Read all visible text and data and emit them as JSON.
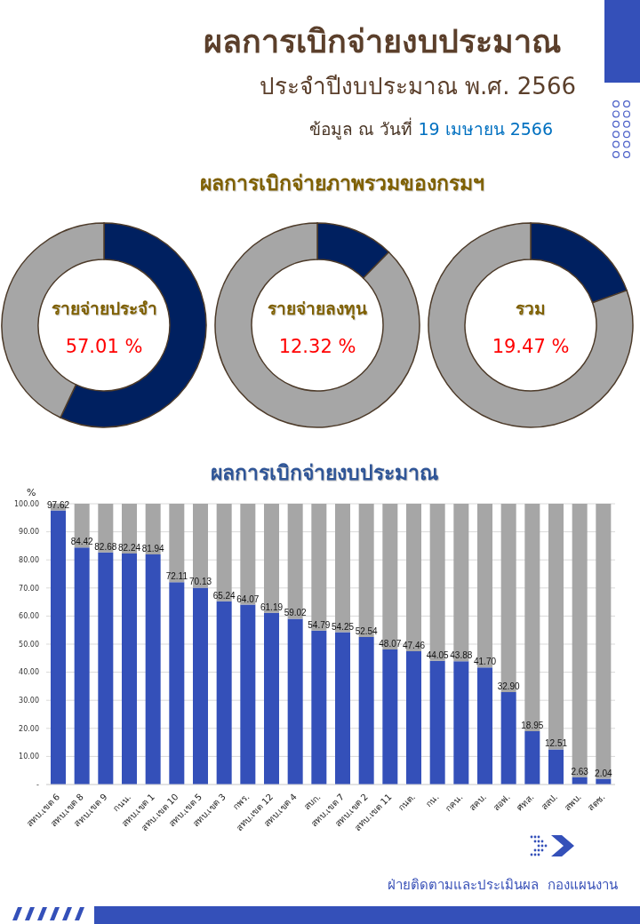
{
  "chart_data": [
    {
      "type": "other",
      "title": "ผลการเบิกจ่ายงบประมาณ",
      "subtitle": "ประจำปีงบประมาณ พ.ศ. 2566",
      "annotations": [
        "ข้อมูล ณ วันที่",
        "19 เมษายน 2566",
        "ผลการเบิกจ่ายภาพรวมของกรมฯ"
      ]
    },
    {
      "type": "donut",
      "title": "รายจ่ายประจำ",
      "categories": [
        null,
        null
      ],
      "values": [
        57.01,
        42.99
      ],
      "colors": [
        "#002060",
        "#a6a6a6"
      ],
      "annotations": [
        "57.01 %"
      ]
    },
    {
      "type": "donut",
      "title": "รายจ่ายลงทุน",
      "categories": [
        null,
        null
      ],
      "values": [
        12.32,
        87.68
      ],
      "colors": [
        "#002060",
        "#a6a6a6"
      ],
      "annotations": [
        "12.32 %"
      ]
    },
    {
      "type": "donut",
      "title": "รวม",
      "categories": [
        null,
        null
      ],
      "values": [
        19.47,
        80.53
      ],
      "colors": [
        "#002060",
        "#a6a6a6"
      ],
      "annotations": [
        "19.47 %"
      ]
    },
    {
      "type": "bar",
      "title": "ผลการเบิกจ่ายงบประมาณ",
      "ylabel": "%",
      "stacked": true,
      "grid": "y",
      "categories": [
        "สทบ.เขต 6",
        "สทบ.เขต 8",
        "สทบ.เขต 9",
        "กนน.",
        "สทบ.เขต 1",
        "สทบ.เขต 10",
        "สทบ.เขต 5",
        "สทบ.เขต 3",
        "กพร.",
        "สทบ.เขต 12",
        "สทบ.เขต 4",
        "สบก.",
        "สทบ.เขต 7",
        "สทบ.เขต 2",
        "สทบ.เขต 11",
        "กนต.",
        "กน.",
        "กคน.",
        "สคบ.",
        "สอฟ.",
        "ศทส.",
        "สสป.",
        "สพบ.",
        "สตช."
      ],
      "series": [
        {
          "color": "#3450b9",
          "values": [
            97.62,
            84.42,
            82.68,
            82.24,
            81.94,
            72.11,
            70.13,
            65.24,
            64.07,
            61.19,
            59.02,
            54.79,
            54.25,
            52.54,
            48.07,
            47.46,
            44.05,
            43.88,
            41.7,
            32.9,
            18.95,
            12.51,
            2.63,
            2.04
          ],
          "value_labels": [
            "97.62",
            "84.42",
            "82.68",
            "82.24",
            "81.94",
            "72.11",
            "70.13",
            "65.24",
            "64.07",
            "61.19",
            "59.02",
            "54.79",
            "54.25",
            "52.54",
            "48.07",
            "47.46",
            "44.05",
            "43.88",
            "41.70",
            "32.90",
            "18.95",
            "12.51",
            "2.63",
            "2.04"
          ]
        },
        {
          "color": "#a6a6a6",
          "values": [
            2.38,
            15.58,
            17.32,
            17.76,
            18.06,
            27.89,
            29.87,
            34.76,
            35.93,
            38.81,
            40.98,
            45.21,
            45.75,
            47.46,
            51.93,
            52.54,
            55.95,
            56.12,
            58.3,
            67.1,
            81.05,
            87.49,
            97.37,
            97.96
          ]
        }
      ],
      "ylim": [
        0,
        100
      ],
      "yticks": [
        {
          "value": 0,
          "label": "-"
        },
        {
          "value": 10,
          "label": "10.00"
        },
        {
          "value": 20,
          "label": "20.00"
        },
        {
          "value": 30,
          "label": "30.00"
        },
        {
          "value": 40,
          "label": "40.00"
        },
        {
          "value": 50,
          "label": "50.00"
        },
        {
          "value": 60,
          "label": "60.00"
        },
        {
          "value": 70,
          "label": "70.00"
        },
        {
          "value": 80,
          "label": "80.00"
        },
        {
          "value": 90,
          "label": "90.00"
        },
        {
          "value": 100,
          "label": "100.00"
        }
      ],
      "annotations": [
        "ฝ่ายติดตามและประเมินผล  กองแผนงาน"
      ]
    }
  ]
}
